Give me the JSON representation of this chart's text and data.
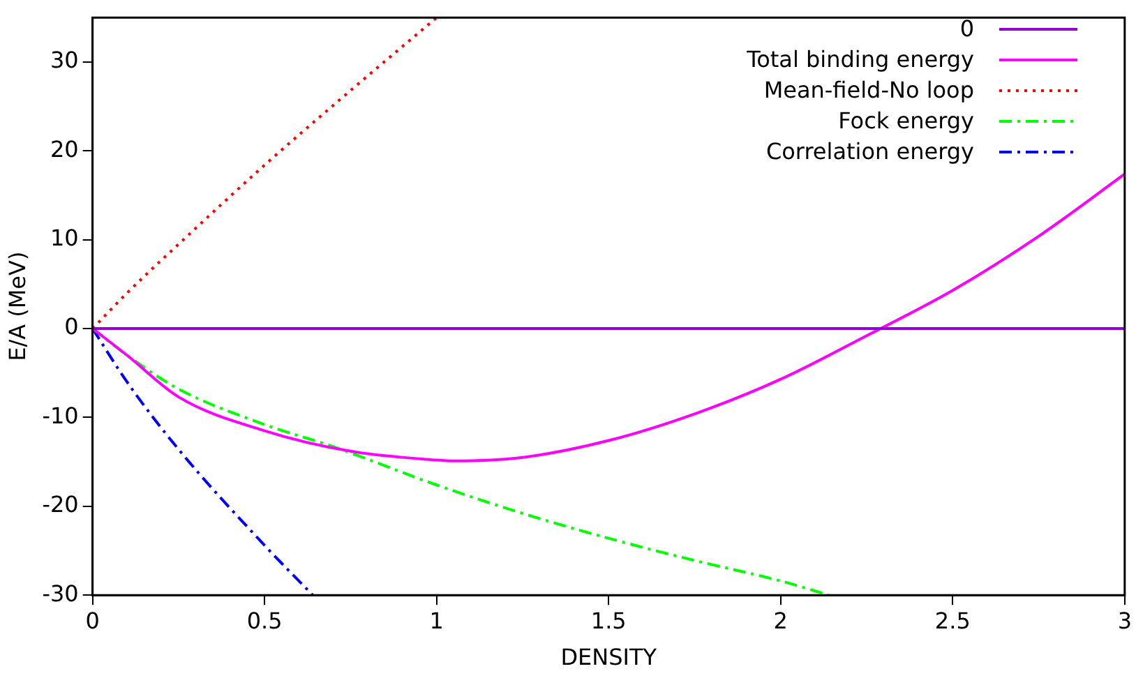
{
  "chart_data": {
    "type": "line",
    "xlabel": "DENSITY",
    "ylabel": "E/A (MeV)",
    "xlim": [
      0,
      3
    ],
    "ylim": [
      -30,
      35
    ],
    "xticks": [
      0,
      0.5,
      1,
      1.5,
      2,
      2.5,
      3
    ],
    "yticks": [
      -30,
      -20,
      -10,
      0,
      10,
      20,
      30
    ],
    "grid": false,
    "legend": "top right",
    "marker": "none",
    "series": [
      {
        "name": "0",
        "color": "#9400d3",
        "line_style": "solid",
        "x": [
          0,
          3
        ],
        "values": [
          0,
          0
        ]
      },
      {
        "name": "Total binding energy",
        "color": "#ff00ff",
        "line_style": "solid",
        "x": [
          0,
          0.1,
          0.25,
          0.5,
          0.75,
          1,
          1.05,
          1.25,
          1.5,
          1.75,
          2,
          2.25,
          2.5,
          2.75,
          3
        ],
        "values": [
          0,
          -3,
          -7.7,
          -11.5,
          -13.8,
          -14.8,
          -14.9,
          -14.5,
          -12.6,
          -9.6,
          -5.7,
          -0.8,
          4.3,
          10.4,
          17.4
        ]
      },
      {
        "name": "Mean-field-No loop",
        "color": "#ff0000",
        "line_style": "dotted",
        "x": [
          0,
          0.1,
          0.25,
          0.5,
          0.75,
          1
        ],
        "values": [
          0,
          4,
          9.5,
          18.4,
          26.8,
          35
        ]
      },
      {
        "name": "Fock energy",
        "color": "#00ff00",
        "line_style": "dashed",
        "x": [
          0,
          0.1,
          0.25,
          0.5,
          0.7,
          1,
          1.25,
          1.5,
          1.75,
          2,
          2.14
        ],
        "values": [
          0,
          -3,
          -6.8,
          -10.8,
          -13.3,
          -17.6,
          -20.8,
          -23.6,
          -26.1,
          -28.4,
          -30
        ]
      },
      {
        "name": "Correlation energy",
        "color": "#0000ff",
        "line_style": "dashed",
        "x": [
          0,
          0.1,
          0.25,
          0.5,
          0.64
        ],
        "values": [
          0,
          -6,
          -13.6,
          -24.4,
          -30
        ]
      }
    ]
  }
}
